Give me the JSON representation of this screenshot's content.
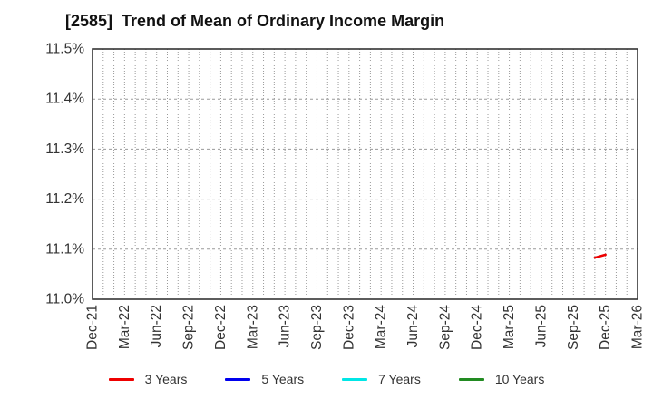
{
  "title": {
    "text": "[2585]  Trend of Mean of Ordinary Income Margin",
    "color": "#111111"
  },
  "chart_data": {
    "type": "line",
    "title": "[2585]  Trend of Mean of Ordinary Income Margin",
    "xlabel": "",
    "ylabel": "",
    "x_axis": {
      "start_month": "Dec-21",
      "end_month": "Mar-26",
      "months_total": 51,
      "labeled_tick_every_months": 3,
      "minor_grid_every_months": 1,
      "tick_labels": [
        "Dec-21",
        "Mar-22",
        "Jun-22",
        "Sep-22",
        "Dec-22",
        "Mar-23",
        "Jun-23",
        "Sep-23",
        "Dec-23",
        "Mar-24",
        "Jun-24",
        "Sep-24",
        "Dec-24",
        "Mar-25",
        "Jun-25",
        "Sep-25",
        "Dec-25",
        "Mar-26"
      ]
    },
    "y_axis": {
      "min": 11.0,
      "max": 11.5,
      "step": 0.1,
      "unit": "%",
      "tick_labels": [
        "11.0%",
        "11.1%",
        "11.2%",
        "11.3%",
        "11.4%",
        "11.5%"
      ]
    },
    "grid": {
      "vertical_style": "dotted",
      "horizontal_style": "dashed",
      "color": "#9a9a9a",
      "border_color": "#333333"
    },
    "legend_position": "bottom-center",
    "series": [
      {
        "name": "3 Years",
        "color": "#ee0000",
        "points": [
          {
            "month": "Nov-25",
            "value": 11.083
          },
          {
            "month": "Dec-25",
            "value": 11.089
          }
        ]
      },
      {
        "name": "5 Years",
        "color": "#0000ee",
        "points": []
      },
      {
        "name": "7 Years",
        "color": "#00e6e6",
        "points": []
      },
      {
        "name": "10 Years",
        "color": "#228b22",
        "points": []
      }
    ]
  },
  "colors": {
    "background": "#ffffff",
    "tick_label": "#333333",
    "grid": "#9a9a9a",
    "plot_border": "#333333"
  }
}
